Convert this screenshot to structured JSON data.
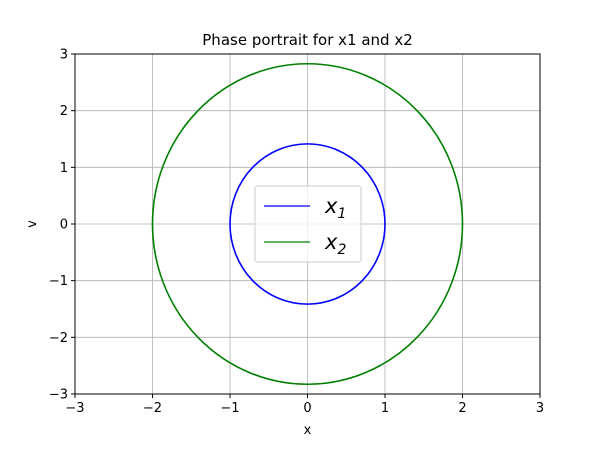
{
  "chart_data": {
    "type": "line",
    "title": "Phase portrait for x1 and x2",
    "xlabel": "x",
    "ylabel": "v",
    "xlim": [
      -3,
      3
    ],
    "ylim": [
      -3,
      3
    ],
    "xticks": [
      -3,
      -2,
      -1,
      0,
      1,
      2,
      3
    ],
    "yticks": [
      -3,
      -2,
      -1,
      0,
      1,
      2,
      3
    ],
    "xtick_labels": [
      "−3",
      "−2",
      "−1",
      "0",
      "1",
      "2",
      "3"
    ],
    "ytick_labels": [
      "−3",
      "−2",
      "−1",
      "0",
      "1",
      "2",
      "3"
    ],
    "grid": true,
    "legend_position": "center",
    "series": [
      {
        "name": "x",
        "subscript": "1",
        "color": "#0000ff",
        "shape": "ellipse",
        "center": [
          0,
          0
        ],
        "x_amplitude": 1.0,
        "v_amplitude": 1.414
      },
      {
        "name": "x",
        "subscript": "2",
        "color": "#008000",
        "shape": "ellipse",
        "center": [
          0,
          0
        ],
        "x_amplitude": 2.0,
        "v_amplitude": 2.828
      }
    ]
  }
}
